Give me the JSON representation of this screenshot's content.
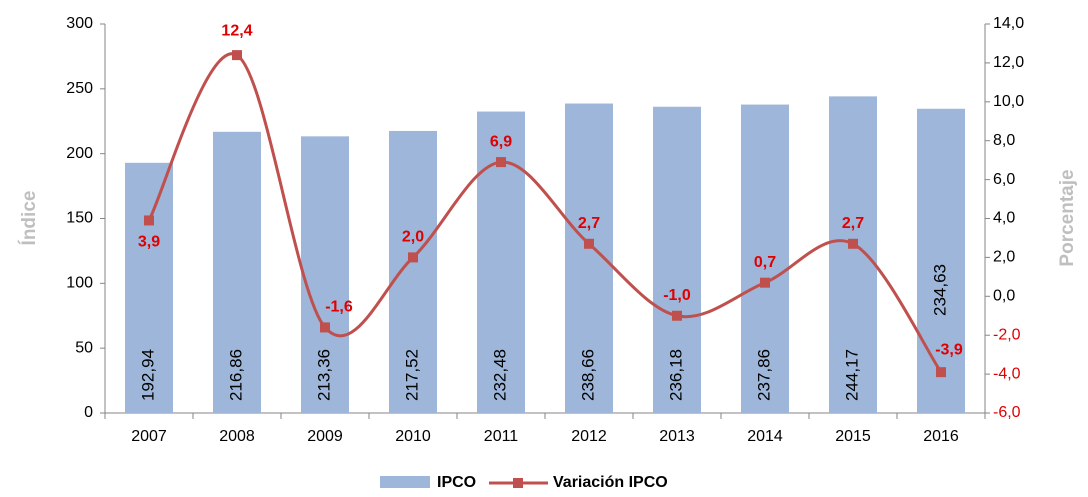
{
  "chart_data": {
    "type": "bar_line",
    "categories": [
      "2007",
      "2008",
      "2009",
      "2010",
      "2011",
      "2012",
      "2013",
      "2014",
      "2015",
      "2016"
    ],
    "series": [
      {
        "name": "IPCO",
        "type": "bar",
        "color": "#9db6d9",
        "values": [
          192.94,
          216.86,
          213.36,
          217.52,
          232.48,
          238.66,
          236.18,
          237.86,
          244.17,
          234.63
        ],
        "value_labels": [
          "192,94",
          "216,86",
          "213,36",
          "217,52",
          "232,48",
          "238,66",
          "236,18",
          "237,86",
          "244,17",
          "234,63"
        ]
      },
      {
        "name": "Variación IPCO",
        "type": "line",
        "axis": "y2",
        "color": "#c0504d",
        "values": [
          3.9,
          12.4,
          -1.6,
          2.0,
          6.9,
          2.7,
          -1.0,
          0.7,
          2.7,
          -3.9
        ],
        "value_labels": [
          "3,9",
          "12,4",
          "-1,6",
          "2,0",
          "6,9",
          "2,7",
          "-1,0",
          "0,7",
          "2,7",
          "-3,9"
        ]
      }
    ],
    "ylabel": "Índice",
    "y2label": "Porcentaje",
    "ylim": [
      0,
      300
    ],
    "yticks": [
      0,
      50,
      100,
      150,
      200,
      250,
      300
    ],
    "y2lim": [
      -6,
      14
    ],
    "y2ticks": [
      {
        "value": -6,
        "label": "-6,0"
      },
      {
        "value": -4,
        "label": "-4,0"
      },
      {
        "value": -2,
        "label": "-2,0"
      },
      {
        "value": 0,
        "label": "0,0"
      },
      {
        "value": 2,
        "label": "2,0"
      },
      {
        "value": 4,
        "label": "4,0"
      },
      {
        "value": 6,
        "label": "6,0"
      },
      {
        "value": 8,
        "label": "8,0"
      },
      {
        "value": 10,
        "label": "10,0"
      },
      {
        "value": 12,
        "label": "12,0"
      },
      {
        "value": 14,
        "label": "14,0"
      }
    ],
    "legend": "bottom"
  }
}
